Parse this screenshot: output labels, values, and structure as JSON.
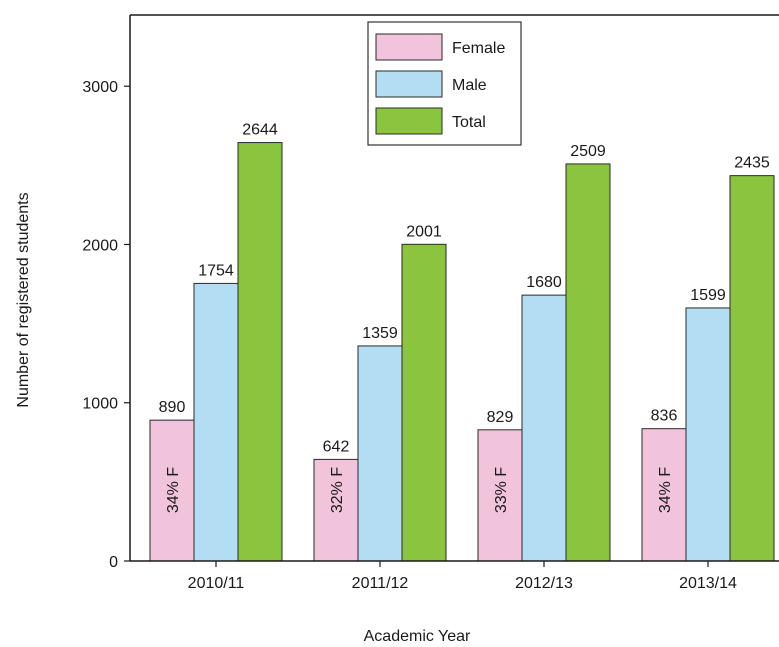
{
  "chart_data": {
    "type": "bar",
    "title": "",
    "xlabel": "Academic Year",
    "ylabel": "Number of registered students",
    "categories": [
      "2010/11",
      "2011/12",
      "2012/13",
      "2013/14"
    ],
    "ylim": [
      0,
      3450
    ],
    "yticks": [
      "0",
      "1000",
      "2000",
      "3000"
    ],
    "legend_placement": "top-center",
    "grid": false,
    "series": [
      {
        "name": "Female",
        "color": "#f2c4dc",
        "values": [
          890,
          642,
          829,
          836
        ],
        "value_labels": [
          "890",
          "642",
          "829",
          "836"
        ]
      },
      {
        "name": "Male",
        "color": "#b3ddf2",
        "values": [
          1754,
          1359,
          1680,
          1599
        ],
        "value_labels": [
          "1754",
          "1359",
          "1680",
          "1599"
        ]
      },
      {
        "name": "Total",
        "color": "#8bc53f",
        "values": [
          2644,
          2001,
          2509,
          2435
        ],
        "value_labels": [
          "2644",
          "2001",
          "2509",
          "2435"
        ]
      }
    ],
    "annotations": [
      "34% F",
      "32% F",
      "33% F",
      "34% F"
    ]
  }
}
